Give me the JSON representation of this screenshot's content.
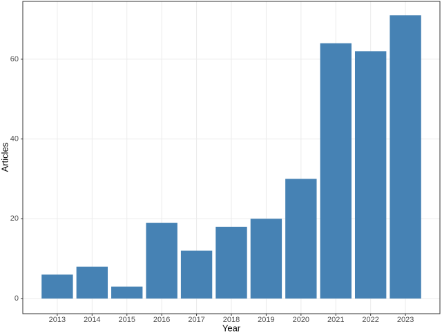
{
  "chart_data": {
    "type": "bar",
    "x_label": "Year",
    "y_label": "Articles",
    "categories": [
      "2013",
      "2014",
      "2015",
      "2016",
      "2017",
      "2018",
      "2019",
      "2020",
      "2021",
      "2022",
      "2023"
    ],
    "values": [
      6,
      8,
      3,
      19,
      12,
      18,
      20,
      30,
      64,
      62,
      71
    ],
    "color": "#4682b4",
    "ylim": [
      -3.8,
      74.5
    ],
    "yticks": [
      0,
      20,
      40,
      60
    ],
    "grid": true
  }
}
